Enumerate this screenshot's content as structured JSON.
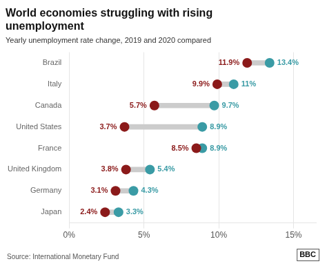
{
  "chart_data": {
    "type": "dumbbell",
    "title": [
      "World economies struggling with rising",
      "unemployment"
    ],
    "subtitle": "Yearly unemployment rate change, 2019 and 2020 compared",
    "categories": [
      "Brazil",
      "Italy",
      "Canada",
      "United States",
      "France",
      "United Kingdom",
      "Germany",
      "Japan"
    ],
    "series": [
      {
        "name": "2019",
        "color": "#8B1A1A",
        "values": [
          11.9,
          9.9,
          5.7,
          3.7,
          8.5,
          3.8,
          3.1,
          2.4
        ],
        "value_labels": [
          "11.9%",
          "9.9%",
          "5.7%",
          "3.7%",
          "8.5%",
          "3.8%",
          "3.1%",
          "2.4%"
        ]
      },
      {
        "name": "2020",
        "color": "#3A9BA5",
        "values": [
          13.4,
          11.0,
          9.7,
          8.9,
          8.9,
          5.4,
          4.3,
          3.3
        ],
        "value_labels": [
          "13.4%",
          "11%",
          "9.7%",
          "8.9%",
          "8.9%",
          "5.4%",
          "4.3%",
          "3.3%"
        ]
      }
    ],
    "xlim": [
      0,
      16.5
    ],
    "xticks": [
      {
        "value": 0,
        "label": "0%"
      },
      {
        "value": 5,
        "label": "5%"
      },
      {
        "value": 10,
        "label": "10%"
      },
      {
        "value": 15,
        "label": "15%"
      }
    ],
    "orientation": "horizontal",
    "grid": true,
    "data_labels": true,
    "annotations": [
      "Source: International Monetary Fund",
      "BBC"
    ]
  }
}
